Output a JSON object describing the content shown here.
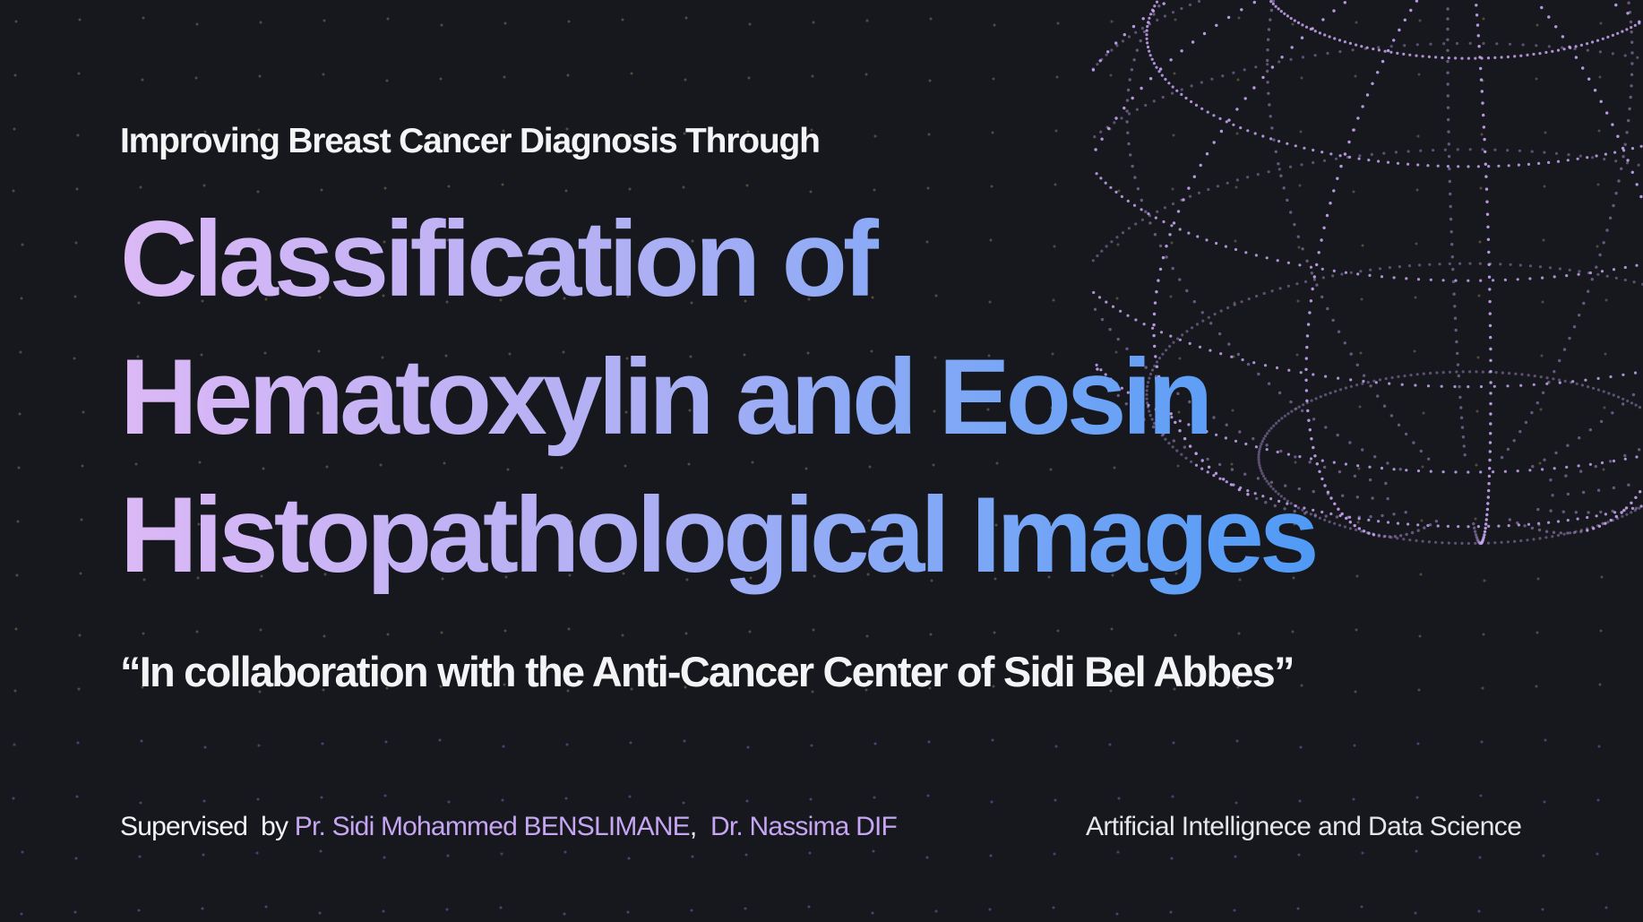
{
  "slide": {
    "pretitle": "Improving Breast Cancer Diagnosis Through",
    "title_lines": [
      "Classification of",
      "Hematoxylin and Eosin",
      "Histopathological Images"
    ],
    "collaboration": "“In collaboration with the Anti-Cancer Center of Sidi Bel Abbes”",
    "supervised_label": "Supervised  by",
    "supervisor_1": "Pr. Sidi Mohammed BENSLIMANE",
    "separator": ",",
    "supervisor_2": "Dr. Nassima DIF",
    "department": "Artificial Intellignece and Data Science"
  },
  "colors": {
    "background": "#16181d",
    "title_gradient": [
      "#dcb8f6",
      "#4f9af6"
    ],
    "supervisor_name": "#c6a6f3",
    "globe_dots": "#c9a6f5",
    "bg_dots": "#a08a5c"
  }
}
